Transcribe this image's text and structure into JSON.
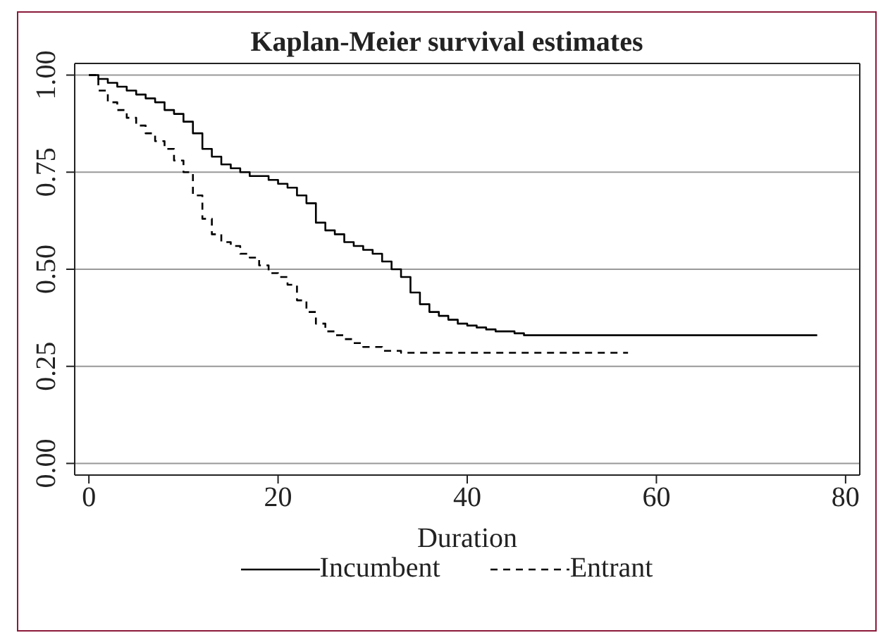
{
  "chart_data": {
    "type": "step",
    "title": "Kaplan-Meier survival estimates",
    "xlabel": "Duration",
    "xlim": [
      -1.5,
      81.5
    ],
    "xticks": [
      0,
      20,
      40,
      60,
      80
    ],
    "ylim": [
      -0.03,
      1.03
    ],
    "yticks": [
      {
        "value": 0,
        "label": "0.00"
      },
      {
        "value": 0.25,
        "label": "0.25"
      },
      {
        "value": 0.5,
        "label": "0.50"
      },
      {
        "value": 0.75,
        "label": "0.75"
      },
      {
        "value": 1,
        "label": "1.00"
      }
    ],
    "grid": "y",
    "legend": "bottom",
    "marker": "none",
    "series": [
      {
        "name": "Incumbent",
        "color": "#000000",
        "line_style": "solid",
        "x": [
          0,
          1,
          2,
          3,
          4,
          5,
          6,
          7,
          8,
          9,
          10,
          11,
          12,
          13,
          14,
          15,
          16,
          17,
          19,
          20,
          21,
          22,
          23,
          24,
          25,
          26,
          27,
          28,
          29,
          30,
          31,
          32,
          33,
          34,
          35,
          36,
          37,
          38,
          39,
          40,
          41,
          42,
          43,
          45,
          46,
          77
        ],
        "values": [
          1.0,
          0.99,
          0.98,
          0.97,
          0.96,
          0.95,
          0.94,
          0.93,
          0.91,
          0.9,
          0.88,
          0.85,
          0.81,
          0.79,
          0.77,
          0.76,
          0.75,
          0.74,
          0.73,
          0.72,
          0.71,
          0.69,
          0.67,
          0.62,
          0.6,
          0.59,
          0.57,
          0.56,
          0.55,
          0.54,
          0.52,
          0.5,
          0.48,
          0.44,
          0.41,
          0.39,
          0.38,
          0.37,
          0.36,
          0.355,
          0.35,
          0.345,
          0.34,
          0.335,
          0.33,
          0.33
        ]
      },
      {
        "name": "Entrant",
        "color": "#000000",
        "line_style": "dashed",
        "x": [
          0,
          1,
          2,
          3,
          4,
          5,
          6,
          7,
          8,
          9,
          10,
          11,
          12,
          13,
          14,
          15,
          16,
          17,
          18,
          19,
          20,
          21,
          22,
          23,
          24,
          25,
          26,
          27,
          28,
          29,
          31,
          33,
          57
        ],
        "values": [
          1.0,
          0.96,
          0.93,
          0.91,
          0.89,
          0.87,
          0.85,
          0.83,
          0.81,
          0.78,
          0.75,
          0.69,
          0.63,
          0.59,
          0.57,
          0.56,
          0.54,
          0.53,
          0.51,
          0.49,
          0.48,
          0.46,
          0.42,
          0.39,
          0.36,
          0.34,
          0.33,
          0.32,
          0.31,
          0.3,
          0.29,
          0.285,
          0.285
        ]
      }
    ]
  }
}
